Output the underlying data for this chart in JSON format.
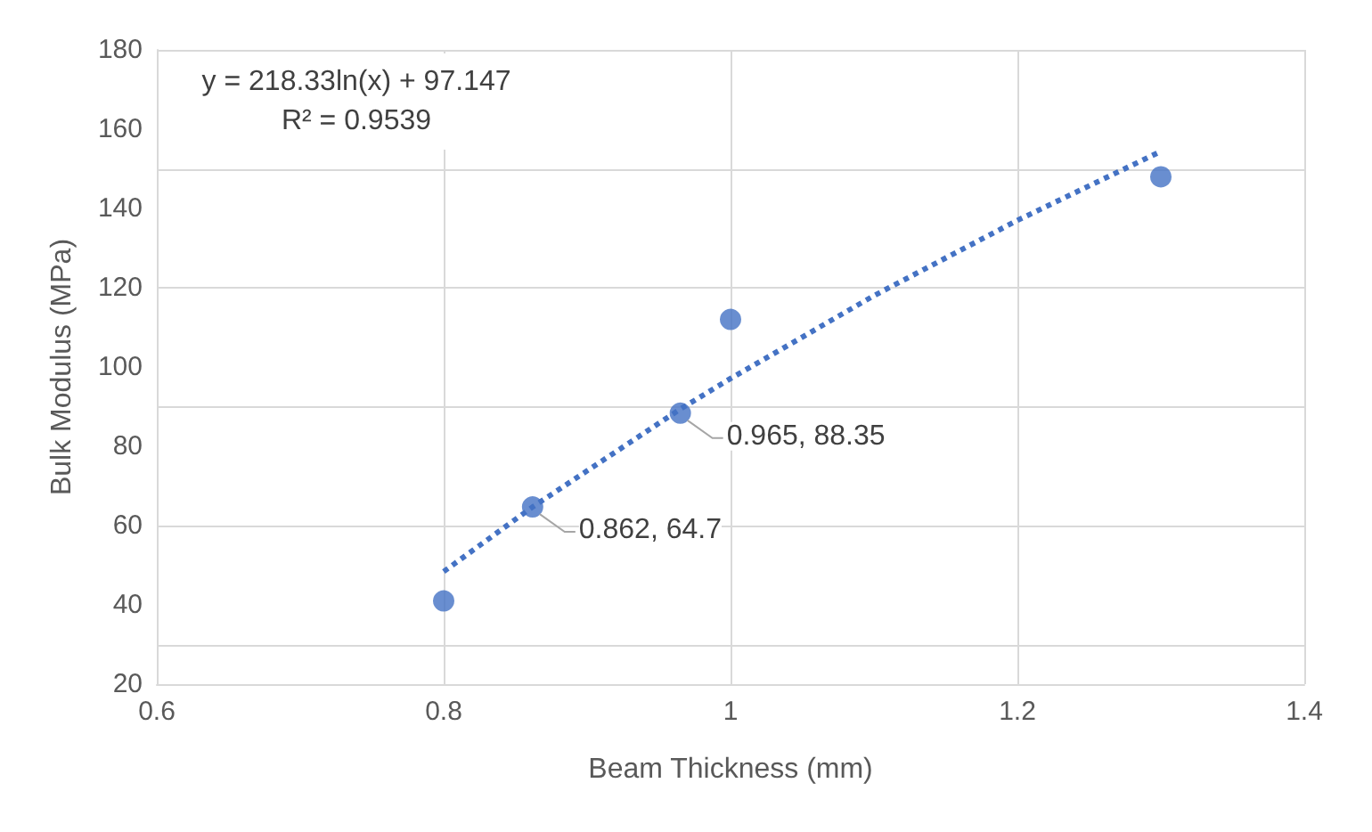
{
  "chart_data": {
    "type": "scatter",
    "xlabel": "Beam Thickness (mm)",
    "ylabel": "Bulk Modulus (MPa)",
    "xlim": [
      0.6,
      1.4
    ],
    "xticks": [
      0.6,
      0.8,
      1,
      1.2,
      1.4
    ],
    "ylim": [
      20,
      180
    ],
    "yticks": [
      20,
      40,
      60,
      80,
      100,
      120,
      140,
      160,
      180
    ],
    "grid": true,
    "marker": "circle",
    "series": [
      {
        "color": "#4472c4",
        "x": [
          0.8,
          0.862,
          0.965,
          1.0,
          1.3
        ],
        "values": [
          41,
          64.7,
          88.35,
          112,
          148
        ]
      },
      {
        "type": "line",
        "color": "#4472c4",
        "line_style": "dotted",
        "marker": "none",
        "x": [
          0.8,
          0.862,
          0.965,
          1.0,
          1.1,
          1.2,
          1.3
        ],
        "values": [
          48.4,
          64.7,
          89.4,
          97.1,
          118.0,
          137.0,
          154.4
        ]
      }
    ],
    "annotations": [
      "y = 218.33ln(x) + 97.147",
      "R² = 0.9539",
      {
        "text": "0.862, 64.7",
        "x": 0.862,
        "y": 64.7
      },
      {
        "text": "0.965, 88.35",
        "x": 0.965,
        "y": 88.35
      }
    ]
  }
}
